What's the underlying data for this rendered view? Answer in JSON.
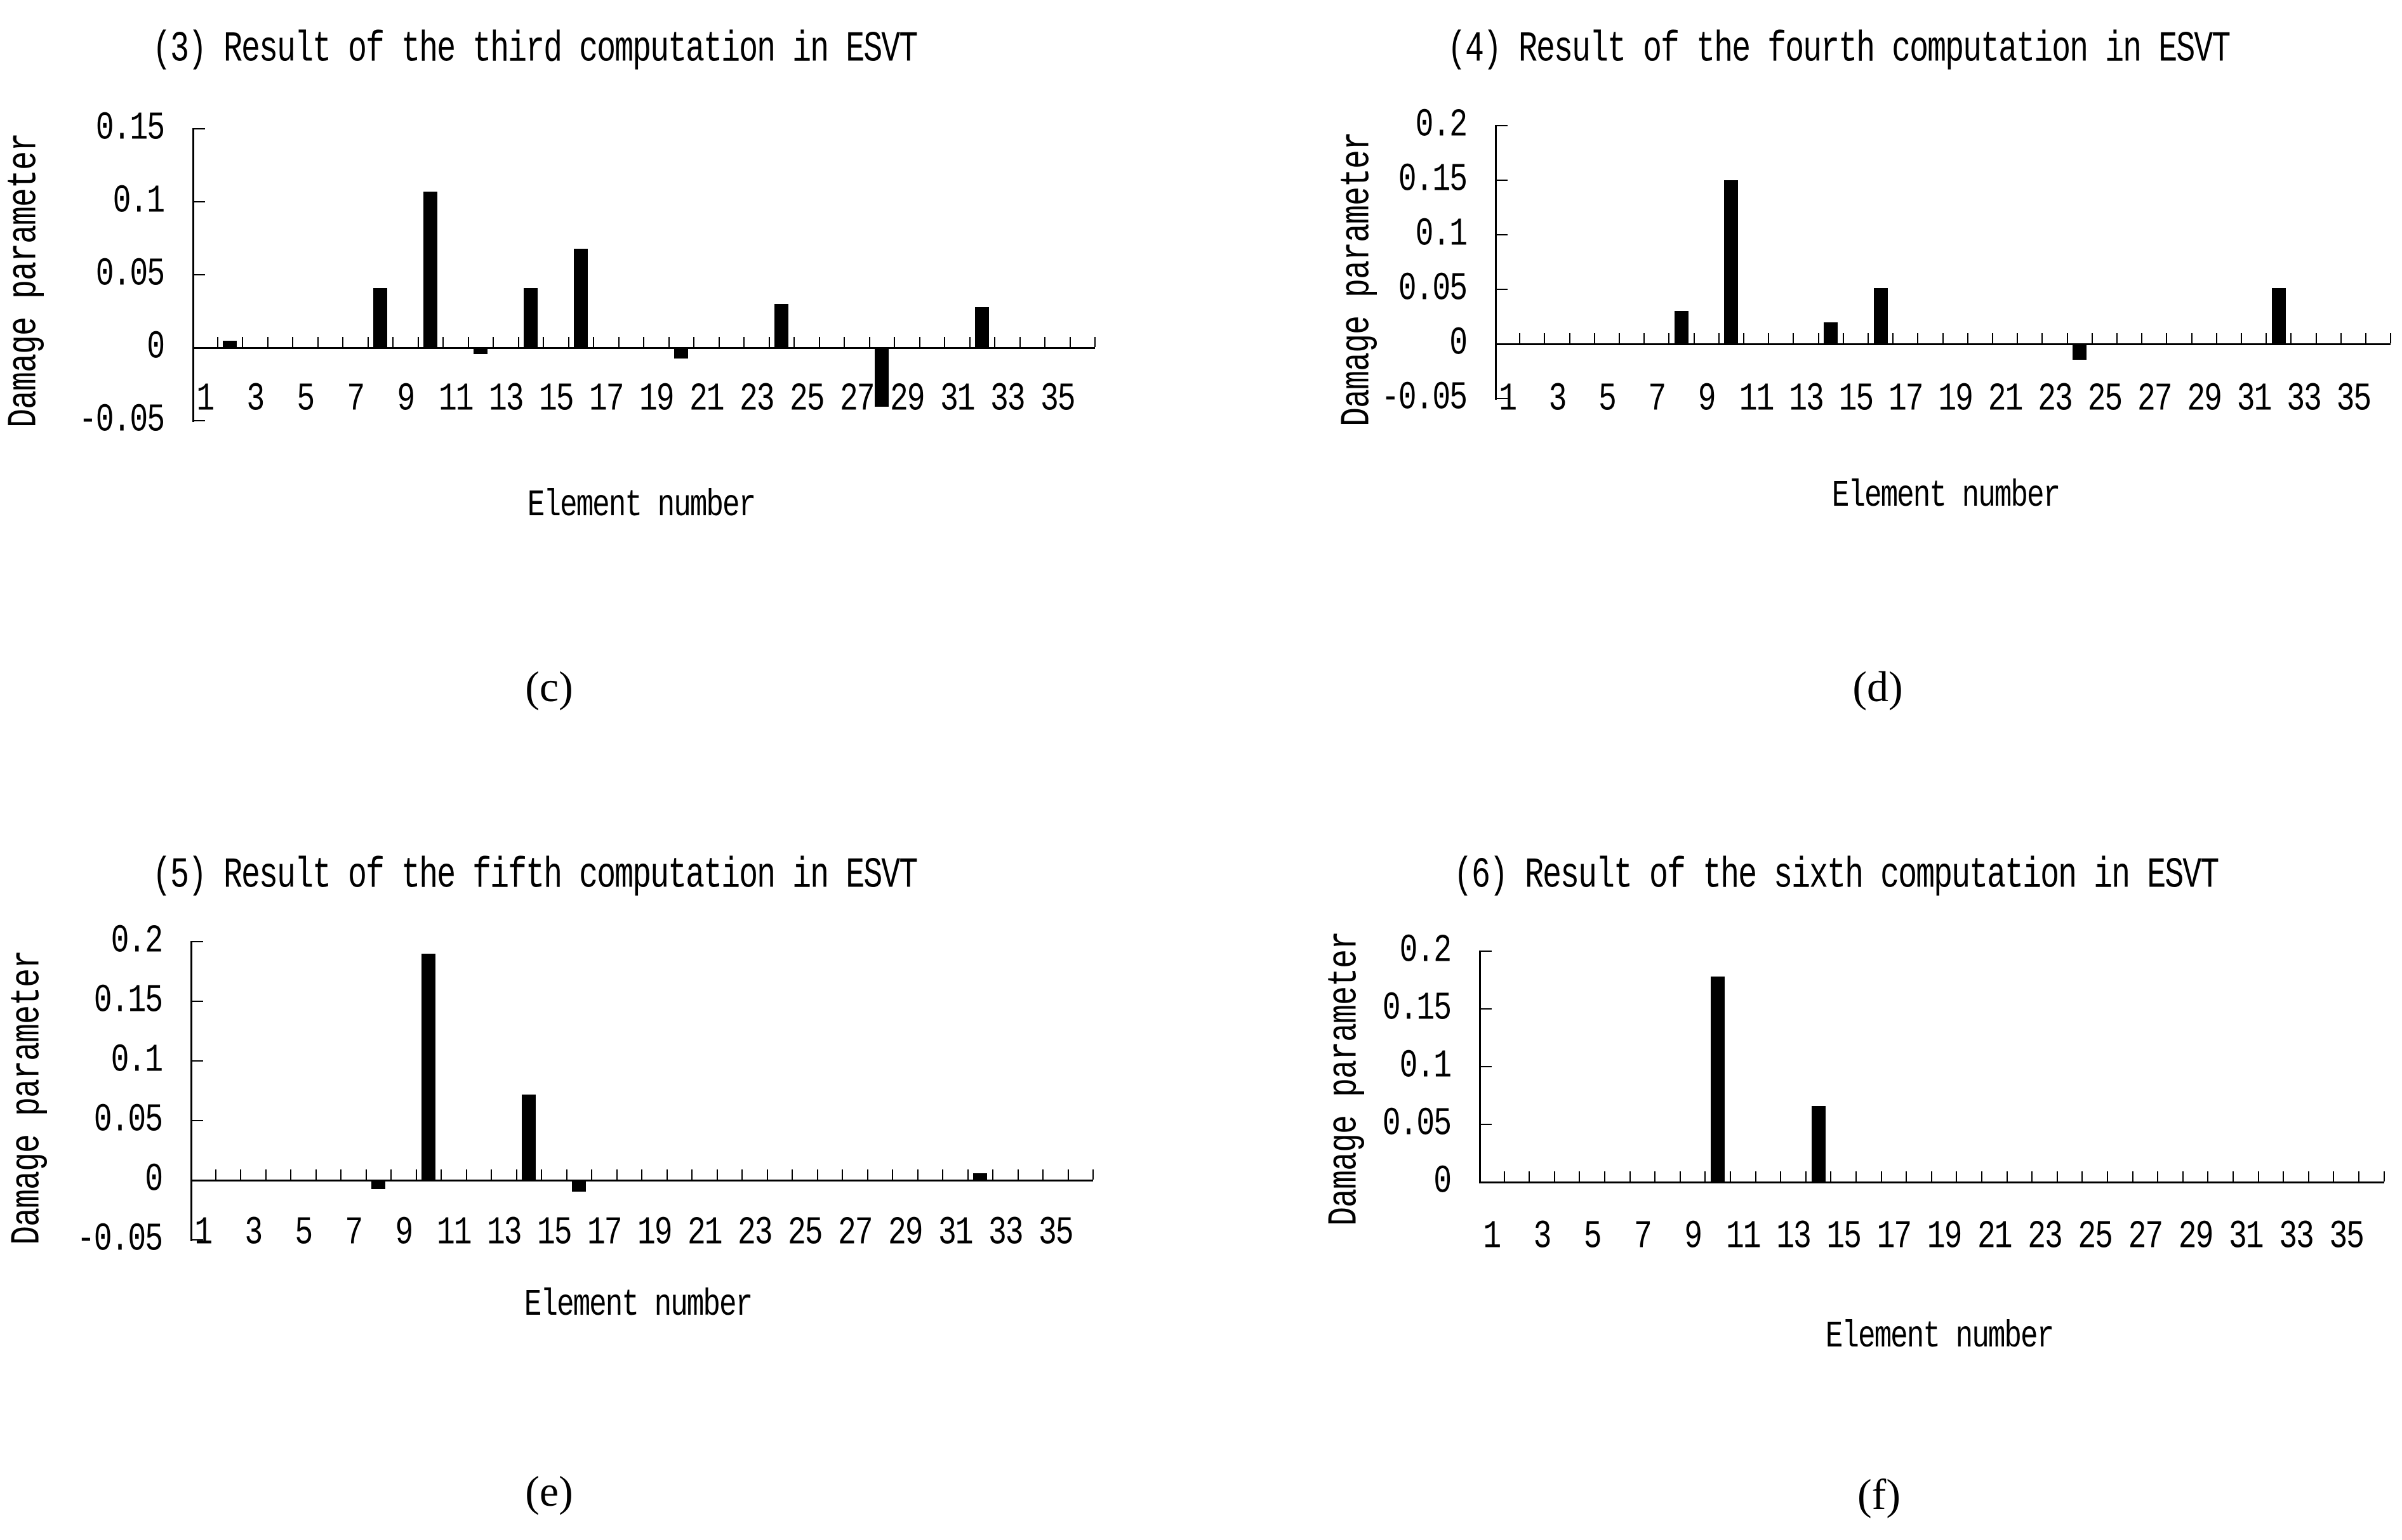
{
  "figure": {
    "background": "#ffffff",
    "ink": "#000000"
  },
  "chart_data": [
    {
      "type": "bar",
      "title": "(3) Result of the third computation in ESVT",
      "caption": "(c)",
      "xlabel": "Element number",
      "ylabel": "Damage parameter",
      "ylim": [
        -0.05,
        0.15
      ],
      "yticks": [
        "0.15",
        "0.1",
        "0.05",
        "0",
        "-0.05"
      ],
      "xticks": [
        "1",
        "3",
        "5",
        "7",
        "9",
        "11",
        "13",
        "15",
        "17",
        "19",
        "21",
        "23",
        "25",
        "27",
        "29",
        "31",
        "33",
        "35"
      ],
      "x_range": [
        1,
        36
      ],
      "grid": false,
      "legend": false,
      "bars": [
        {
          "element": 2,
          "value": 0.005
        },
        {
          "element": 8,
          "value": 0.041
        },
        {
          "element": 10,
          "value": 0.107
        },
        {
          "element": 12,
          "value": -0.004
        },
        {
          "element": 14,
          "value": 0.041
        },
        {
          "element": 16,
          "value": 0.068
        },
        {
          "element": 20,
          "value": -0.007
        },
        {
          "element": 24,
          "value": 0.03
        },
        {
          "element": 28,
          "value": -0.04
        },
        {
          "element": 32,
          "value": 0.028
        }
      ]
    },
    {
      "type": "bar",
      "title": "(4) Result of the fourth computation in ESVT",
      "caption": "(d)",
      "xlabel": "Element number",
      "ylabel": "Damage parameter",
      "ylim": [
        -0.05,
        0.2
      ],
      "yticks": [
        "0.2",
        "0.15",
        "0.1",
        "0.05",
        "0",
        "-0.05"
      ],
      "xticks": [
        "1",
        "3",
        "5",
        "7",
        "9",
        "11",
        "13",
        "15",
        "17",
        "19",
        "21",
        "23",
        "25",
        "27",
        "29",
        "31",
        "33",
        "35"
      ],
      "x_range": [
        1,
        36
      ],
      "grid": false,
      "legend": false,
      "bars": [
        {
          "element": 8,
          "value": 0.03
        },
        {
          "element": 10,
          "value": 0.15
        },
        {
          "element": 14,
          "value": 0.02
        },
        {
          "element": 16,
          "value": 0.051
        },
        {
          "element": 24,
          "value": -0.014
        },
        {
          "element": 32,
          "value": 0.051
        }
      ]
    },
    {
      "type": "bar",
      "title": "(5) Result of the fifth computation in ESVT",
      "caption": "(e)",
      "xlabel": "Element number",
      "ylabel": "Damage parameter",
      "ylim": [
        -0.05,
        0.2
      ],
      "yticks": [
        "0.2",
        "0.15",
        "0.1",
        "0.05",
        "0",
        "-0.05"
      ],
      "xticks": [
        "1",
        "3",
        "5",
        "7",
        "9",
        "11",
        "13",
        "15",
        "17",
        "19",
        "21",
        "23",
        "25",
        "27",
        "29",
        "31",
        "33",
        "35"
      ],
      "x_range": [
        1,
        36
      ],
      "grid": false,
      "legend": false,
      "bars": [
        {
          "element": 8,
          "value": -0.007
        },
        {
          "element": 10,
          "value": 0.19
        },
        {
          "element": 14,
          "value": 0.072
        },
        {
          "element": 16,
          "value": -0.009
        },
        {
          "element": 32,
          "value": 0.006
        }
      ]
    },
    {
      "type": "bar",
      "title": "(6) Result of the sixth computation in ESVT",
      "caption": "(f)",
      "xlabel": "Element number",
      "ylabel": "Damage parameter",
      "ylim": [
        0,
        0.2
      ],
      "yticks": [
        "0.2",
        "0.15",
        "0.1",
        "0.05",
        "0"
      ],
      "xticks": [
        "1",
        "3",
        "5",
        "7",
        "9",
        "11",
        "13",
        "15",
        "17",
        "19",
        "21",
        "23",
        "25",
        "27",
        "29",
        "31",
        "33",
        "35"
      ],
      "x_range": [
        1,
        36
      ],
      "grid": false,
      "legend": false,
      "bars": [
        {
          "element": 10,
          "value": 0.178
        },
        {
          "element": 14,
          "value": 0.066
        }
      ]
    }
  ]
}
